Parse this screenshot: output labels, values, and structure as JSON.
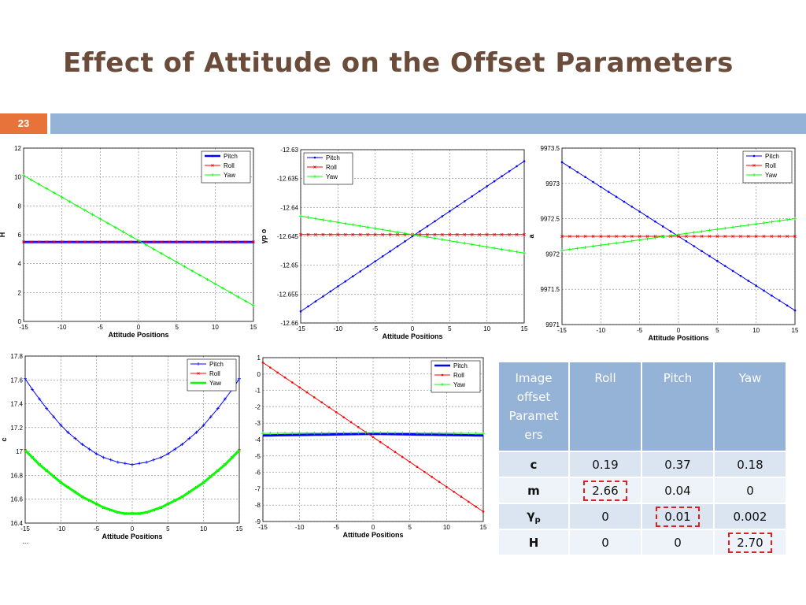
{
  "slide": {
    "title": "Effect of Attitude on the Offset Parameters",
    "number": "23",
    "footnote": "..."
  },
  "chart_data": [
    {
      "type": "line",
      "id": "H",
      "xlabel": "Attitude Positions",
      "ylabel": "H",
      "xlim": [
        -15,
        15
      ],
      "ylim": [
        0,
        12
      ],
      "xticks": [
        -15,
        -10,
        -5,
        0,
        5,
        10,
        15
      ],
      "yticks": [
        0,
        2,
        4,
        6,
        8,
        10,
        12
      ],
      "grid": true,
      "legend": "top-right",
      "series": [
        {
          "name": "Pitch",
          "color": "#0000ff",
          "marker": "dot",
          "width": 3,
          "x": [
            -15,
            15
          ],
          "y": [
            5.5,
            5.5
          ]
        },
        {
          "name": "Roll",
          "color": "#ff0000",
          "marker": "x",
          "width": 1,
          "x": [
            -15,
            15
          ],
          "y": [
            5.5,
            5.5
          ]
        },
        {
          "name": "Yaw",
          "color": "#00ff00",
          "marker": "plus",
          "width": 1,
          "x": [
            -15,
            15
          ],
          "y": [
            10.1,
            1.1
          ]
        }
      ]
    },
    {
      "type": "line",
      "id": "gamma_p",
      "xlabel": "Attitude Positions",
      "ylabel": "γp o",
      "xlim": [
        -15,
        15
      ],
      "ylim": [
        -12.66,
        -12.63
      ],
      "xticks": [
        -15,
        -10,
        -5,
        0,
        5,
        10,
        15
      ],
      "yticks": [
        -12.66,
        -12.655,
        -12.65,
        -12.645,
        -12.64,
        -12.635,
        -12.63
      ],
      "grid": true,
      "legend": "top-left",
      "series": [
        {
          "name": "Pitch",
          "color": "#0000ff",
          "marker": "dot",
          "width": 1,
          "x": [
            -15,
            15
          ],
          "y": [
            -12.658,
            -12.632
          ]
        },
        {
          "name": "Roll",
          "color": "#ff0000",
          "marker": "x",
          "width": 1,
          "x": [
            -15,
            15
          ],
          "y": [
            -12.6447,
            -12.6447
          ]
        },
        {
          "name": "Yaw",
          "color": "#00ff00",
          "marker": "plus",
          "width": 1,
          "x": [
            -15,
            15
          ],
          "y": [
            -12.6415,
            -12.6479
          ]
        }
      ]
    },
    {
      "type": "line",
      "id": "a",
      "xlabel": "Attitude Positions",
      "ylabel": "a",
      "xlim": [
        -15,
        15
      ],
      "ylim": [
        9971,
        9973.5
      ],
      "xticks": [
        -15,
        -10,
        -5,
        0,
        5,
        10,
        15
      ],
      "yticks": [
        9971,
        9971.5,
        9972,
        9972.5,
        9973,
        9973.5
      ],
      "grid": true,
      "legend": "top-right",
      "series": [
        {
          "name": "Pitch",
          "color": "#0000ff",
          "marker": "dot",
          "width": 1,
          "x": [
            -15,
            15
          ],
          "y": [
            9973.3,
            9971.2
          ]
        },
        {
          "name": "Roll",
          "color": "#ff0000",
          "marker": "x",
          "width": 1,
          "x": [
            -15,
            15
          ],
          "y": [
            9972.25,
            9972.25
          ]
        },
        {
          "name": "Yaw",
          "color": "#00ff00",
          "marker": "plus",
          "width": 1,
          "x": [
            -15,
            15
          ],
          "y": [
            9972.05,
            9972.5
          ]
        }
      ]
    },
    {
      "type": "line",
      "id": "c",
      "xlabel": "Attitude Positions",
      "ylabel": "c",
      "xlim": [
        -15,
        15
      ],
      "ylim": [
        16.4,
        17.8
      ],
      "xticks": [
        -15,
        -10,
        -5,
        0,
        5,
        10,
        15
      ],
      "yticks": [
        16.4,
        16.6,
        16.8,
        17,
        17.2,
        17.4,
        17.6,
        17.8
      ],
      "grid": true,
      "legend": "top-right",
      "series": [
        {
          "name": "Pitch",
          "color": "#0000ff",
          "marker": "plus",
          "width": 1,
          "x": [
            -15,
            -14,
            -13,
            -12,
            -11,
            -10,
            -9,
            -8,
            -7,
            -6,
            -5,
            -4,
            -3,
            -2,
            -1,
            0,
            1,
            2,
            3,
            4,
            5,
            6,
            7,
            8,
            9,
            10,
            11,
            12,
            13,
            14,
            15
          ],
          "y": [
            17.61,
            17.52,
            17.44,
            17.36,
            17.29,
            17.22,
            17.16,
            17.11,
            17.06,
            17.02,
            16.98,
            16.95,
            16.93,
            16.91,
            16.9,
            16.89,
            16.9,
            16.91,
            16.93,
            16.95,
            16.98,
            17.02,
            17.06,
            17.11,
            17.16,
            17.22,
            17.29,
            17.36,
            17.44,
            17.52,
            17.61
          ]
        },
        {
          "name": "Roll",
          "color": "#ff0000",
          "marker": "x",
          "width": 1,
          "x": [
            -15,
            -14,
            -13,
            -12,
            -11,
            -10,
            -9,
            -8,
            -7,
            -6,
            -5,
            -4,
            -3,
            -2,
            -1,
            0,
            1,
            2,
            3,
            4,
            5,
            6,
            7,
            8,
            9,
            10,
            11,
            12,
            13,
            14,
            15
          ],
          "y": [
            17.01,
            16.95,
            16.89,
            16.84,
            16.79,
            16.74,
            16.7,
            16.66,
            16.62,
            16.59,
            16.56,
            16.53,
            16.51,
            16.49,
            16.48,
            16.48,
            16.48,
            16.49,
            16.51,
            16.53,
            16.56,
            16.59,
            16.62,
            16.66,
            16.7,
            16.74,
            16.79,
            16.84,
            16.89,
            16.95,
            17.01
          ]
        },
        {
          "name": "Yaw",
          "color": "#00ff00",
          "marker": "none",
          "width": 3,
          "x": [
            -15,
            -14,
            -13,
            -12,
            -11,
            -10,
            -9,
            -8,
            -7,
            -6,
            -5,
            -4,
            -3,
            -2,
            -1,
            0,
            1,
            2,
            3,
            4,
            5,
            6,
            7,
            8,
            9,
            10,
            11,
            12,
            13,
            14,
            15
          ],
          "y": [
            17.01,
            16.95,
            16.89,
            16.84,
            16.79,
            16.74,
            16.7,
            16.66,
            16.62,
            16.59,
            16.56,
            16.53,
            16.51,
            16.49,
            16.48,
            16.48,
            16.48,
            16.49,
            16.51,
            16.53,
            16.56,
            16.59,
            16.62,
            16.66,
            16.7,
            16.74,
            16.79,
            16.84,
            16.89,
            16.95,
            17.01
          ]
        }
      ]
    },
    {
      "type": "line",
      "id": "m",
      "xlabel": "Attitude Positions",
      "ylabel": "m",
      "xlim": [
        -15,
        15
      ],
      "ylim": [
        -9,
        1
      ],
      "xticks": [
        -15,
        -10,
        -5,
        0,
        5,
        10,
        15
      ],
      "yticks": [
        -9,
        -8,
        -7,
        -6,
        -5,
        -4,
        -3,
        -2,
        -1,
        0,
        1
      ],
      "grid": true,
      "legend": "top-right",
      "series": [
        {
          "name": "Pitch",
          "color": "#0000ff",
          "marker": "none",
          "width": 3,
          "x": [
            -15,
            0,
            15
          ],
          "y": [
            -3.75,
            -3.65,
            -3.75
          ]
        },
        {
          "name": "Roll",
          "color": "#ff0000",
          "marker": "dot",
          "width": 1,
          "x": [
            -15,
            15
          ],
          "y": [
            0.7,
            -8.4
          ]
        },
        {
          "name": "Yaw",
          "color": "#00ff00",
          "marker": "plus",
          "width": 1,
          "x": [
            -15,
            0,
            15
          ],
          "y": [
            -3.62,
            -3.58,
            -3.62
          ]
        }
      ]
    }
  ],
  "table": {
    "headers": [
      "Image offset Paramet ers",
      "Roll",
      "Pitch",
      "Yaw"
    ],
    "rows": [
      {
        "label": "c",
        "values": [
          "0.19",
          "0.37",
          "0.18"
        ],
        "highlight": -1
      },
      {
        "label": "m",
        "values": [
          "2.66",
          "0.04",
          "0"
        ],
        "highlight": 0
      },
      {
        "label": "γ",
        "sub": "p",
        "values": [
          "0",
          "0.01",
          "0.002"
        ],
        "highlight": 1
      },
      {
        "label": "H",
        "values": [
          "0",
          "0",
          "2.70"
        ],
        "highlight": 2
      }
    ]
  }
}
